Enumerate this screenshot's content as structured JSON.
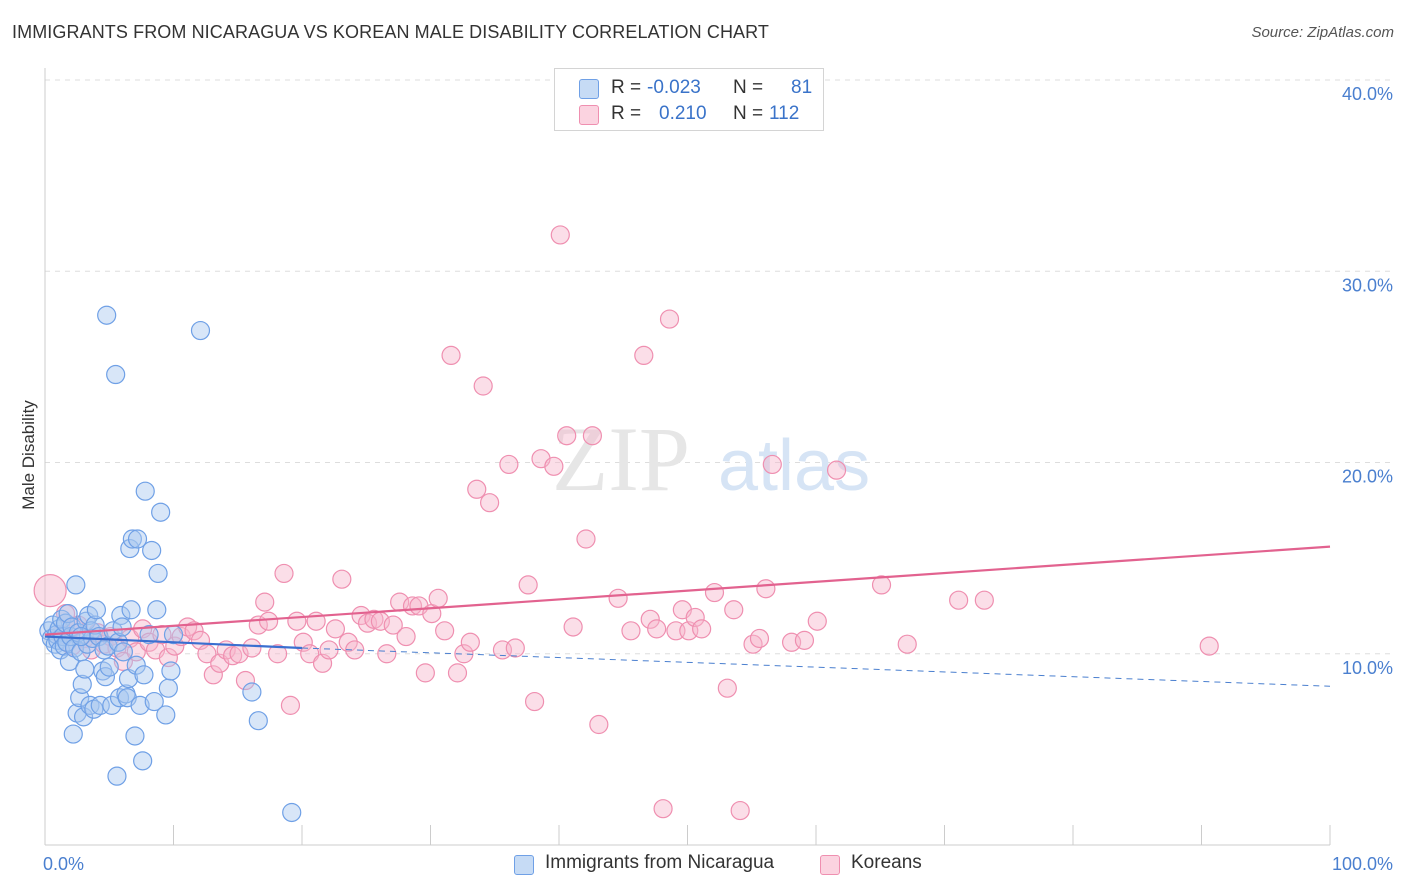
{
  "title": "IMMIGRANTS FROM NICARAGUA VS KOREAN MALE DISABILITY CORRELATION CHART",
  "source": "Source: ZipAtlas.com",
  "watermark": {
    "zip": "ZIP",
    "atlas": "atlas"
  },
  "legend": {
    "rows": [
      {
        "r_label": "R =",
        "r_value": "-0.023",
        "n_label": "N =",
        "n_value": "81",
        "color": "#a8c8f0"
      },
      {
        "r_label": "R =",
        "r_value": "0.210",
        "n_label": "N =",
        "n_value": "112",
        "color": "#f7b6cb"
      }
    ]
  },
  "bottom_legend": [
    {
      "label": "Immigrants from Nicaragua",
      "color": "#a8c8f0"
    },
    {
      "label": "Koreans",
      "color": "#f7b6cb"
    }
  ],
  "chart_data": {
    "type": "scatter",
    "title": "IMMIGRANTS FROM NICARAGUA VS KOREAN MALE DISABILITY CORRELATION CHART",
    "xlabel": "",
    "ylabel": "Male Disability",
    "xlim": [
      0,
      100
    ],
    "ylim": [
      0,
      42
    ],
    "x_tick_labels": [
      "0.0%",
      "100.0%"
    ],
    "y_ticks": [
      10,
      20,
      30,
      40
    ],
    "y_tick_labels": [
      "10.0%",
      "20.0%",
      "30.0%",
      "40.0%"
    ],
    "grid": true,
    "series": [
      {
        "name": "Immigrants from Nicaragua",
        "color": "#6fa0e6",
        "fill": "#a8c8f0",
        "trend": {
          "x": [
            0,
            20
          ],
          "y": [
            10.9,
            10.3
          ],
          "dashed_extension": {
            "x": [
              20,
              100
            ],
            "y": [
              10.3,
              8.3
            ]
          }
        },
        "points": [
          [
            0.3,
            11.2
          ],
          [
            0.5,
            10.8
          ],
          [
            0.6,
            11.5
          ],
          [
            0.8,
            10.5
          ],
          [
            0.9,
            11.0
          ],
          [
            1.0,
            10.7
          ],
          [
            1.1,
            11.3
          ],
          [
            1.2,
            10.2
          ],
          [
            1.3,
            11.8
          ],
          [
            1.4,
            10.9
          ],
          [
            1.5,
            10.4
          ],
          [
            1.6,
            11.6
          ],
          [
            1.7,
            10.6
          ],
          [
            1.8,
            12.1
          ],
          [
            1.9,
            9.6
          ],
          [
            2.0,
            10.9
          ],
          [
            2.1,
            11.4
          ],
          [
            2.2,
            5.8
          ],
          [
            2.3,
            10.3
          ],
          [
            2.4,
            13.6
          ],
          [
            2.5,
            6.9
          ],
          [
            2.6,
            11.1
          ],
          [
            2.7,
            7.7
          ],
          [
            2.8,
            10.1
          ],
          [
            2.9,
            8.4
          ],
          [
            3.0,
            6.7
          ],
          [
            3.1,
            9.2
          ],
          [
            3.2,
            11.7
          ],
          [
            3.3,
            10.5
          ],
          [
            3.4,
            12.0
          ],
          [
            3.5,
            7.3
          ],
          [
            3.6,
            11.2
          ],
          [
            3.7,
            10.8
          ],
          [
            3.8,
            7.1
          ],
          [
            3.9,
            11.5
          ],
          [
            4.0,
            12.3
          ],
          [
            4.2,
            10.9
          ],
          [
            4.3,
            7.3
          ],
          [
            4.5,
            9.1
          ],
          [
            4.6,
            10.2
          ],
          [
            4.7,
            8.8
          ],
          [
            4.8,
            27.7
          ],
          [
            4.9,
            10.4
          ],
          [
            5.0,
            9.3
          ],
          [
            5.2,
            7.3
          ],
          [
            5.3,
            11.2
          ],
          [
            5.5,
            24.6
          ],
          [
            5.6,
            3.6
          ],
          [
            5.7,
            10.6
          ],
          [
            5.8,
            7.7
          ],
          [
            5.9,
            12.0
          ],
          [
            6.0,
            11.4
          ],
          [
            6.1,
            10.1
          ],
          [
            6.3,
            7.9
          ],
          [
            6.4,
            7.7
          ],
          [
            6.5,
            8.7
          ],
          [
            6.6,
            15.5
          ],
          [
            6.7,
            12.3
          ],
          [
            6.8,
            16.0
          ],
          [
            7.0,
            5.7
          ],
          [
            7.1,
            9.4
          ],
          [
            7.2,
            16.0
          ],
          [
            7.4,
            7.3
          ],
          [
            7.6,
            4.4
          ],
          [
            7.7,
            8.9
          ],
          [
            7.8,
            18.5
          ],
          [
            8.1,
            11.0
          ],
          [
            8.3,
            15.4
          ],
          [
            8.5,
            7.5
          ],
          [
            8.7,
            12.3
          ],
          [
            8.8,
            14.2
          ],
          [
            9.0,
            17.4
          ],
          [
            9.4,
            6.8
          ],
          [
            9.6,
            8.2
          ],
          [
            9.8,
            9.1
          ],
          [
            10.0,
            11.0
          ],
          [
            12.1,
            26.9
          ],
          [
            16.1,
            8.0
          ],
          [
            16.6,
            6.5
          ],
          [
            19.2,
            1.7
          ],
          [
            2.8,
            10.9
          ]
        ]
      },
      {
        "name": "Koreans",
        "color": "#ef8fb0",
        "fill": "#f7b6cb",
        "trend": {
          "x": [
            0,
            100
          ],
          "y": [
            11.0,
            15.6
          ]
        },
        "points": [
          [
            0.4,
            13.3
          ],
          [
            1.2,
            11.0
          ],
          [
            1.6,
            12.1
          ],
          [
            2.1,
            10.4
          ],
          [
            2.6,
            11.5
          ],
          [
            3.1,
            10.8
          ],
          [
            3.6,
            10.2
          ],
          [
            4.1,
            11.1
          ],
          [
            4.6,
            10.5
          ],
          [
            5.1,
            10.9
          ],
          [
            5.6,
            10.3
          ],
          [
            6.1,
            9.6
          ],
          [
            6.6,
            10.8
          ],
          [
            7.1,
            10.1
          ],
          [
            7.6,
            11.3
          ],
          [
            8.1,
            10.6
          ],
          [
            8.6,
            10.2
          ],
          [
            9.1,
            11.0
          ],
          [
            9.6,
            9.8
          ],
          [
            10.1,
            10.4
          ],
          [
            10.6,
            10.9
          ],
          [
            11.1,
            11.4
          ],
          [
            11.6,
            11.2
          ],
          [
            12.1,
            10.7
          ],
          [
            12.6,
            10.0
          ],
          [
            13.1,
            8.9
          ],
          [
            13.6,
            9.5
          ],
          [
            14.1,
            10.2
          ],
          [
            14.6,
            9.9
          ],
          [
            15.1,
            10.0
          ],
          [
            15.6,
            8.6
          ],
          [
            16.1,
            10.3
          ],
          [
            16.6,
            11.5
          ],
          [
            17.1,
            12.7
          ],
          [
            17.4,
            11.7
          ],
          [
            18.1,
            10.0
          ],
          [
            18.6,
            14.2
          ],
          [
            19.1,
            7.3
          ],
          [
            19.6,
            11.7
          ],
          [
            20.1,
            10.6
          ],
          [
            20.6,
            10.0
          ],
          [
            21.1,
            11.7
          ],
          [
            21.6,
            9.5
          ],
          [
            22.1,
            10.2
          ],
          [
            22.6,
            11.3
          ],
          [
            23.1,
            13.9
          ],
          [
            23.6,
            10.6
          ],
          [
            24.1,
            10.2
          ],
          [
            24.6,
            12.0
          ],
          [
            25.1,
            11.6
          ],
          [
            25.6,
            11.8
          ],
          [
            26.1,
            11.7
          ],
          [
            26.6,
            10.0
          ],
          [
            27.1,
            11.5
          ],
          [
            27.6,
            12.7
          ],
          [
            28.1,
            10.9
          ],
          [
            28.6,
            12.5
          ],
          [
            29.1,
            12.5
          ],
          [
            29.6,
            9.0
          ],
          [
            30.1,
            12.1
          ],
          [
            30.6,
            12.9
          ],
          [
            31.1,
            11.2
          ],
          [
            31.6,
            25.6
          ],
          [
            32.1,
            9.0
          ],
          [
            32.6,
            10.0
          ],
          [
            33.1,
            10.6
          ],
          [
            33.6,
            18.6
          ],
          [
            34.1,
            24.0
          ],
          [
            34.6,
            17.9
          ],
          [
            35.6,
            10.2
          ],
          [
            36.1,
            19.9
          ],
          [
            36.6,
            10.3
          ],
          [
            37.6,
            13.6
          ],
          [
            38.1,
            7.5
          ],
          [
            38.6,
            20.2
          ],
          [
            39.6,
            19.8
          ],
          [
            40.1,
            31.9
          ],
          [
            40.6,
            21.4
          ],
          [
            41.1,
            11.4
          ],
          [
            42.1,
            16.0
          ],
          [
            42.6,
            21.4
          ],
          [
            43.1,
            6.3
          ],
          [
            44.6,
            12.9
          ],
          [
            45.6,
            11.2
          ],
          [
            46.6,
            25.6
          ],
          [
            47.1,
            11.8
          ],
          [
            47.6,
            11.3
          ],
          [
            48.1,
            1.9
          ],
          [
            48.6,
            27.5
          ],
          [
            49.1,
            11.2
          ],
          [
            49.6,
            12.3
          ],
          [
            50.1,
            11.2
          ],
          [
            50.6,
            11.9
          ],
          [
            51.1,
            11.3
          ],
          [
            52.1,
            13.2
          ],
          [
            53.1,
            8.2
          ],
          [
            53.6,
            12.3
          ],
          [
            54.1,
            1.8
          ],
          [
            55.1,
            10.5
          ],
          [
            55.6,
            10.8
          ],
          [
            56.1,
            13.4
          ],
          [
            56.6,
            19.9
          ],
          [
            58.1,
            10.6
          ],
          [
            59.1,
            10.7
          ],
          [
            60.1,
            11.7
          ],
          [
            61.6,
            19.6
          ],
          [
            65.1,
            13.6
          ],
          [
            67.1,
            10.5
          ],
          [
            71.1,
            12.8
          ],
          [
            73.1,
            12.8
          ],
          [
            90.6,
            10.4
          ],
          [
            2.3,
            11.4
          ]
        ]
      }
    ]
  }
}
